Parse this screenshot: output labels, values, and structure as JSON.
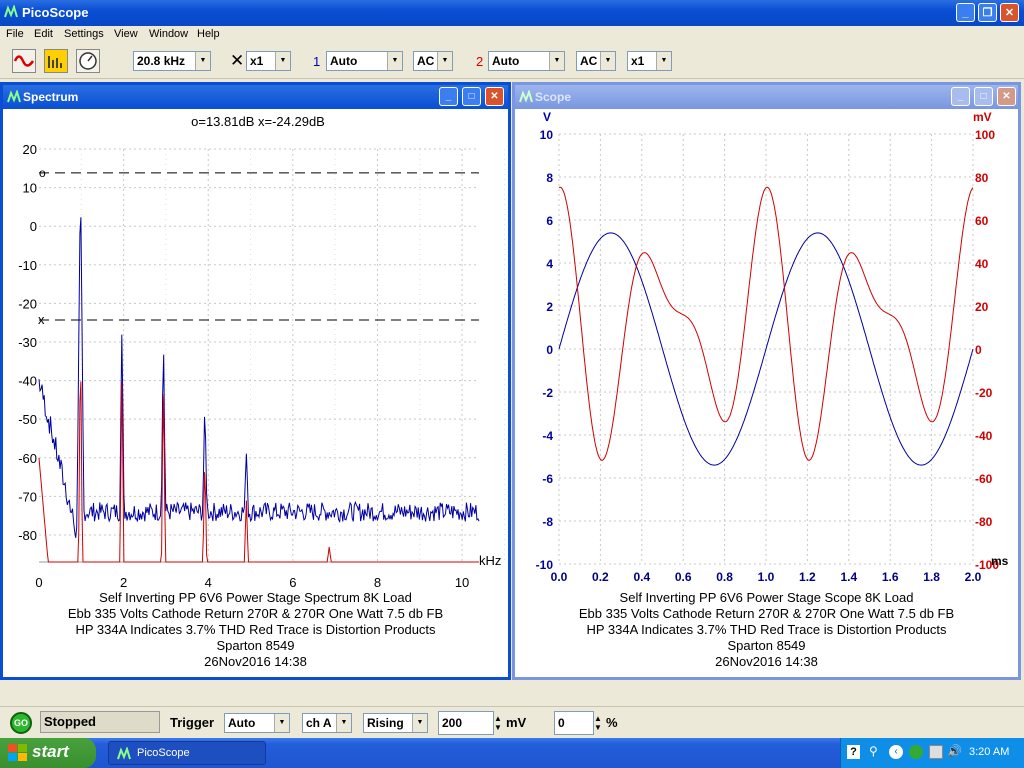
{
  "app": {
    "title": "PicoScope"
  },
  "menu": [
    "File",
    "Edit",
    "Settings",
    "View",
    "Window",
    "Help"
  ],
  "toolbar": {
    "timebase": "20.8 kHz",
    "x_mult": "x1",
    "ch1": {
      "num": "1",
      "range": "Auto",
      "coupling": "AC"
    },
    "ch2": {
      "num": "2",
      "range": "Auto",
      "coupling": "AC"
    },
    "ch2_mult": "x1"
  },
  "spectrum": {
    "title": "Spectrum",
    "marker_readout": "o=13.81dB  x=-24.29dB",
    "marker_o": "o",
    "marker_x": "x",
    "marker_o_level": 13.81,
    "marker_x_level": -24.29,
    "x_unit": "kHz"
  },
  "scope": {
    "title": "Scope",
    "left_unit": "V",
    "right_unit": "mV",
    "x_unit": "ms"
  },
  "caption": {
    "line1_spectrum": "Self Inverting PP 6V6 Power Stage Spectrum 8K Load",
    "line1_scope": "Self Inverting PP 6V6 Power Stage Scope 8K Load",
    "line2": "Ebb 335 Volts Cathode Return 270R & 270R One Watt 7.5 db FB",
    "line3": "HP 334A Indicates 3.7% THD Red Trace is Distortion Products",
    "line4": "Sparton 8549",
    "line5": "26Nov2016  14:38"
  },
  "status": {
    "go_label": "GO",
    "state": "Stopped",
    "trigger_label": "Trigger",
    "trigger_mode": "Auto",
    "trigger_channel": "ch A",
    "trigger_edge": "Rising",
    "trigger_level": "200",
    "level_unit": "mV",
    "pretrigger": "0",
    "pretrigger_unit": "%"
  },
  "taskbar": {
    "start": "start",
    "task": "PicoScope",
    "clock": "3:20 AM"
  },
  "colors": {
    "ch1": "#0000a0",
    "ch2": "#d00000",
    "active_title": "#0a4ed4",
    "inactive_title": "#7a96df"
  },
  "chart_data": [
    {
      "type": "line",
      "title": "",
      "xlabel": "kHz",
      "ylabel": "",
      "xlim": [
        0,
        10.4
      ],
      "ylim": [
        -87,
        20
      ],
      "x_ticks": [
        0,
        2,
        4,
        6,
        8,
        10
      ],
      "y_ticks": [
        20,
        10,
        0,
        -10,
        -20,
        -30,
        -40,
        -50,
        -60,
        -70,
        -80
      ],
      "grid": true,
      "series": [
        {
          "color": "#0000a0",
          "peaks": [
            {
              "x": 0.98,
              "y": 13.81
            },
            {
              "x": 1.96,
              "y": -24.29
            },
            {
              "x": 2.94,
              "y": -27
            },
            {
              "x": 3.92,
              "y": -45
            },
            {
              "x": 4.9,
              "y": -58
            }
          ],
          "floor": -74
        },
        {
          "color": "#d00000",
          "peaks": [
            {
              "x": 0.98,
              "y": -26
            },
            {
              "x": 1.96,
              "y": -36
            },
            {
              "x": 2.94,
              "y": -36
            },
            {
              "x": 3.92,
              "y": -59
            },
            {
              "x": 4.9,
              "y": -70
            },
            {
              "x": 6.86,
              "y": -83
            }
          ],
          "floor": -87
        }
      ]
    },
    {
      "type": "line",
      "title": "",
      "xlabel": "ms",
      "xlim": [
        0,
        2.0
      ],
      "x_ticks": [
        0.0,
        0.2,
        0.4,
        0.6,
        0.8,
        1.0,
        1.2,
        1.4,
        1.6,
        1.8,
        2.0
      ],
      "y_left": {
        "unit": "V",
        "lim": [
          -10,
          10
        ],
        "ticks": [
          10,
          8,
          6,
          4,
          2,
          0,
          -2,
          -4,
          -6,
          -8,
          -10
        ]
      },
      "y_right": {
        "unit": "mV",
        "lim": [
          -100,
          100
        ],
        "ticks": [
          100,
          80,
          60,
          40,
          20,
          0,
          -20,
          -40,
          -60,
          -80,
          -100
        ]
      },
      "grid": true,
      "series": [
        {
          "axis": "left",
          "color": "#0000a0",
          "amplitude": 5.4,
          "period_ms": 1.0,
          "phase_ms": 0.0
        },
        {
          "axis": "right",
          "color": "#d00000",
          "max": 75,
          "min": -58,
          "period_ms": 1.0
        }
      ]
    }
  ]
}
